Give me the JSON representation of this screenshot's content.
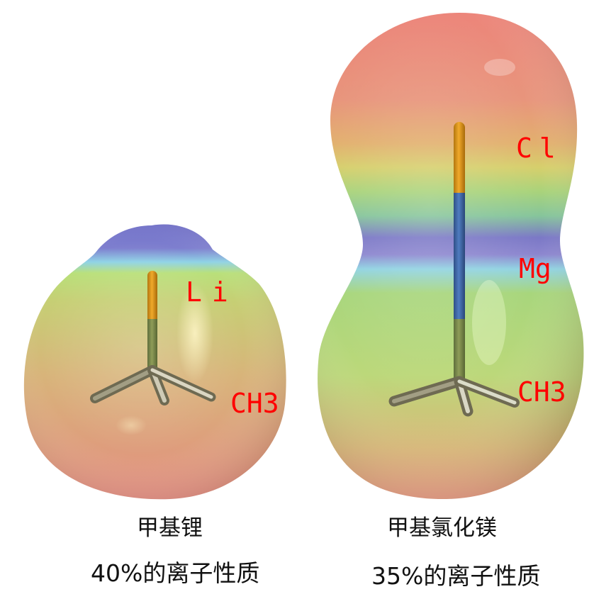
{
  "molecules": [
    {
      "id": "methyllithium",
      "atom_labels": {
        "metal": "Li",
        "methyl": "CH3"
      },
      "name": "甲基锂",
      "ionic_character": "40%的离子性质"
    },
    {
      "id": "methylmagnesium-chloride",
      "atom_labels": {
        "halogen": "Cl",
        "metal": "Mg",
        "methyl": "CH3"
      },
      "name": "甲基氯化镁",
      "ionic_character": "35%的离子性质"
    }
  ],
  "colors": {
    "label": "#ff0000",
    "electron_rich": "#e8877a",
    "neutral": "#a8d070",
    "electron_poor": "#7a70c8"
  }
}
